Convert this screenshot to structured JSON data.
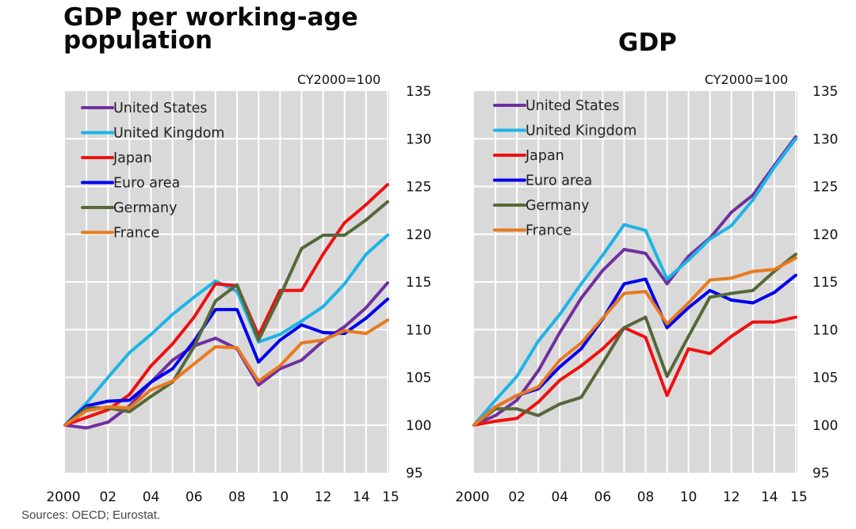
{
  "titles": {
    "left": "GDP per working-age population",
    "right": "GDP",
    "note_left": "CY2000=100",
    "note_right": "CY2000=100"
  },
  "source": "Sources: OECD; Eurostat.",
  "colors": {
    "United States": "#7030a0",
    "United Kingdom": "#1eb4e6",
    "Japan": "#ee1111",
    "Euro area": "#0000ee",
    "Germany": "#56683a",
    "France": "#e8791f",
    "plot_bg": "#d9d9d9",
    "grid": "#ffffff"
  },
  "chart_data": [
    {
      "id": "left",
      "type": "line",
      "title": "GDP per working-age population",
      "subtitle": "CY2000=100",
      "x": [
        2000,
        2001,
        2002,
        2003,
        2004,
        2005,
        2006,
        2007,
        2008,
        2009,
        2010,
        2011,
        2012,
        2013,
        2014,
        2015
      ],
      "xtick_labels": [
        "2000",
        "02",
        "04",
        "06",
        "08",
        "10",
        "12",
        "14",
        "15"
      ],
      "xtick_values": [
        2000,
        2002,
        2004,
        2006,
        2008,
        2010,
        2012,
        2014,
        2015
      ],
      "ylim": [
        95,
        135
      ],
      "yticks": [
        95,
        100,
        105,
        110,
        115,
        120,
        125,
        130,
        135
      ],
      "y_axis_side": "right",
      "grid": true,
      "legend": "top-left",
      "series": [
        {
          "name": "United States",
          "values": [
            100,
            99.7,
            100.3,
            102.0,
            104.5,
            106.8,
            108.3,
            109.1,
            108.0,
            104.2,
            105.9,
            106.8,
            108.8,
            110.3,
            112.3,
            114.9
          ]
        },
        {
          "name": "United Kingdom",
          "values": [
            100,
            102.3,
            105.0,
            107.6,
            109.5,
            111.6,
            113.4,
            115.1,
            114.0,
            108.7,
            109.5,
            110.9,
            112.4,
            114.8,
            117.9,
            119.9
          ]
        },
        {
          "name": "Japan",
          "values": [
            100,
            100.8,
            101.6,
            103.2,
            106.2,
            108.5,
            111.3,
            114.8,
            114.6,
            109.4,
            114.1,
            114.1,
            117.9,
            121.2,
            123.1,
            125.2
          ]
        },
        {
          "name": "Euro area",
          "values": [
            100,
            102.0,
            102.5,
            102.6,
            104.5,
            105.9,
            108.8,
            112.1,
            112.1,
            106.6,
            108.9,
            110.5,
            109.7,
            109.6,
            111.2,
            113.2
          ]
        },
        {
          "name": "Germany",
          "values": [
            100,
            101.8,
            101.8,
            101.4,
            103.0,
            104.5,
            108.2,
            113.0,
            114.7,
            108.9,
            113.5,
            118.5,
            119.9,
            119.9,
            121.5,
            123.4
          ]
        },
        {
          "name": "France",
          "values": [
            100,
            101.5,
            101.9,
            101.8,
            103.7,
            104.6,
            106.4,
            108.2,
            108.1,
            104.6,
            106.2,
            108.6,
            108.9,
            109.9,
            109.6,
            111.0
          ]
        }
      ]
    },
    {
      "id": "right",
      "type": "line",
      "title": "GDP",
      "subtitle": "CY2000=100",
      "x": [
        2000,
        2001,
        2002,
        2003,
        2004,
        2005,
        2006,
        2007,
        2008,
        2009,
        2010,
        2011,
        2012,
        2013,
        2014,
        2015
      ],
      "xtick_labels": [
        "2000",
        "02",
        "04",
        "06",
        "08",
        "10",
        "12",
        "14",
        "15"
      ],
      "xtick_values": [
        2000,
        2002,
        2004,
        2006,
        2008,
        2010,
        2012,
        2014,
        2015
      ],
      "ylim": [
        95,
        135
      ],
      "yticks": [
        95,
        100,
        105,
        110,
        115,
        120,
        125,
        130,
        135
      ],
      "y_axis_side": "right",
      "grid": true,
      "legend": "top-left",
      "series": [
        {
          "name": "United States",
          "values": [
            100,
            101.0,
            102.6,
            105.7,
            109.7,
            113.3,
            116.2,
            118.4,
            118.0,
            114.8,
            117.7,
            119.6,
            122.3,
            124.1,
            127.2,
            130.2
          ]
        },
        {
          "name": "United Kingdom",
          "values": [
            100,
            102.6,
            105.1,
            108.8,
            111.6,
            114.8,
            117.8,
            121.0,
            120.4,
            115.3,
            117.3,
            119.5,
            120.9,
            123.6,
            127.0,
            130.0
          ]
        },
        {
          "name": "Japan",
          "values": [
            100,
            100.4,
            100.7,
            102.4,
            104.7,
            106.2,
            108.0,
            110.2,
            109.2,
            103.1,
            108.0,
            107.5,
            109.3,
            110.8,
            110.8,
            111.3
          ]
        },
        {
          "name": "Euro area",
          "values": [
            100,
            101.9,
            103.1,
            103.8,
            106.1,
            108.0,
            111.1,
            114.8,
            115.3,
            110.2,
            112.3,
            114.1,
            113.1,
            112.8,
            113.9,
            115.7
          ]
        },
        {
          "name": "Germany",
          "values": [
            100,
            101.7,
            101.7,
            101.0,
            102.2,
            102.9,
            106.5,
            110.2,
            111.3,
            105.1,
            109.3,
            113.4,
            113.8,
            114.1,
            116.1,
            117.9
          ]
        },
        {
          "name": "France",
          "values": [
            100,
            101.9,
            103.1,
            104.0,
            106.8,
            108.6,
            111.2,
            113.8,
            114.0,
            110.6,
            112.8,
            115.2,
            115.4,
            116.1,
            116.3,
            117.5
          ]
        }
      ]
    }
  ]
}
